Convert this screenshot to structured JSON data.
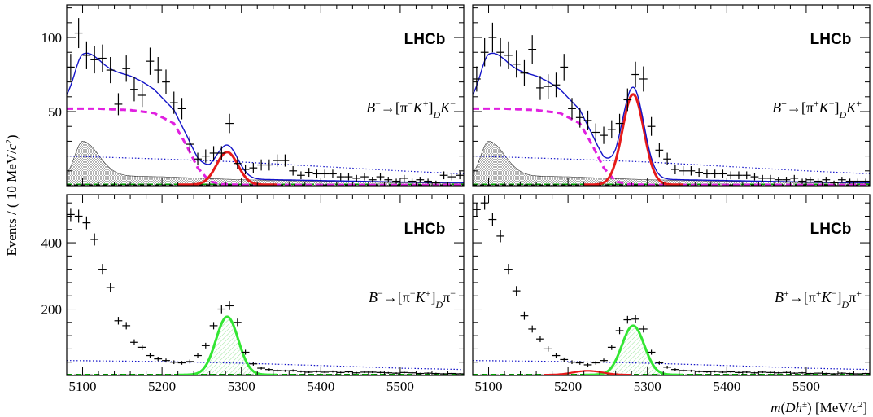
{
  "chart_data": {
    "type": "scatter",
    "shared": {
      "ylabel": "Events / ( 10 MeV/c²)",
      "xlabel": "m(Dh±) [MeV/c²]",
      "xlim": [
        5080,
        5580
      ],
      "xticks": [
        5100,
        5200,
        5300,
        5400,
        5500
      ]
    },
    "panels": [
      {
        "id": "top-left",
        "label": "LHCb",
        "decay": [
          "B",
          "−",
          "→[π",
          "−",
          "K",
          "+",
          "]",
          "D",
          "K",
          "−"
        ],
        "ylim": [
          0,
          122
        ],
        "yticks": [
          50,
          100
        ],
        "points": {
          "x": [
            5085,
            5095,
            5105,
            5115,
            5125,
            5135,
            5145,
            5155,
            5165,
            5175,
            5185,
            5195,
            5205,
            5215,
            5225,
            5235,
            5245,
            5255,
            5265,
            5275,
            5285,
            5295,
            5305,
            5315,
            5325,
            5335,
            5345,
            5355,
            5365,
            5375,
            5385,
            5395,
            5405,
            5415,
            5425,
            5435,
            5445,
            5455,
            5465,
            5475,
            5485,
            5495,
            5505,
            5515,
            5525,
            5535,
            5545,
            5555,
            5565,
            5575
          ],
          "y": [
            80,
            103,
            88,
            85,
            86,
            78,
            55,
            79,
            65,
            61,
            84,
            78,
            70,
            56,
            52,
            28,
            18,
            20,
            22,
            22,
            42,
            15,
            11,
            12,
            14,
            14,
            17,
            17,
            10,
            7,
            9,
            8,
            8,
            8,
            6,
            6,
            5,
            6,
            4,
            6,
            4,
            3,
            5,
            3,
            4,
            3,
            2,
            7,
            6,
            7
          ]
        },
        "curves": {
          "combinatorial": [
            [
              5080,
              5
            ],
            [
              5100,
              7
            ],
            [
              5200,
              6
            ],
            [
              5300,
              4
            ],
            [
              5400,
              3
            ],
            [
              5500,
              2
            ],
            [
              5580,
              1.6
            ]
          ],
          "partially_reconstructed_bs": [
            [
              5080,
              52
            ],
            [
              5120,
              52
            ],
            [
              5160,
              51
            ],
            [
              5190,
              49
            ],
            [
              5215,
              42
            ],
            [
              5230,
              28
            ],
            [
              5245,
              12
            ],
            [
              5260,
              3
            ],
            [
              5275,
              1
            ],
            [
              5300,
              0.5
            ]
          ],
          "signal_peak": {
            "mean": 5282,
            "sigma": 13.5,
            "amp": 22
          },
          "low_mass_hump": {
            "mean": 5100,
            "sigma": 12,
            "amp": 23
          },
          "dotted_line": [
            [
              5080,
              20
            ],
            [
              5200,
              18
            ],
            [
              5300,
              16
            ],
            [
              5400,
              13
            ],
            [
              5500,
              10
            ],
            [
              5580,
              8
            ]
          ],
          "floor": 1.6
        }
      },
      {
        "id": "top-right",
        "label": "LHCb",
        "decay": [
          "B",
          "+",
          "→[π",
          "+",
          "K",
          "−",
          "]",
          "D",
          "K",
          "+"
        ],
        "ylim": [
          0,
          122
        ],
        "yticks": [
          50,
          100
        ],
        "points": {
          "x": [
            5085,
            5095,
            5105,
            5115,
            5125,
            5135,
            5145,
            5155,
            5165,
            5175,
            5185,
            5195,
            5205,
            5215,
            5225,
            5235,
            5245,
            5255,
            5265,
            5275,
            5285,
            5295,
            5305,
            5315,
            5325,
            5335,
            5345,
            5355,
            5365,
            5375,
            5385,
            5395,
            5405,
            5415,
            5425,
            5435,
            5445,
            5455,
            5465,
            5475,
            5485,
            5495,
            5505,
            5515,
            5525,
            5535,
            5545,
            5555,
            5565,
            5575
          ],
          "y": [
            72,
            90,
            100,
            90,
            88,
            82,
            76,
            92,
            66,
            67,
            68,
            80,
            52,
            46,
            44,
            36,
            34,
            38,
            42,
            58,
            75,
            72,
            40,
            24,
            18,
            11,
            10,
            10,
            9,
            8,
            8,
            8,
            7,
            7,
            7,
            6,
            5,
            5,
            4,
            4,
            5,
            3,
            4,
            3,
            4,
            2,
            4,
            3,
            3,
            3
          ]
        },
        "curves": {
          "combinatorial": [
            [
              5080,
              5
            ],
            [
              5100,
              7
            ],
            [
              5200,
              6
            ],
            [
              5300,
              4
            ],
            [
              5400,
              3
            ],
            [
              5500,
              2
            ],
            [
              5580,
              1.6
            ]
          ],
          "partially_reconstructed_bs": [
            [
              5080,
              52
            ],
            [
              5120,
              52
            ],
            [
              5160,
              51
            ],
            [
              5190,
              49
            ],
            [
              5215,
              42
            ],
            [
              5230,
              28
            ],
            [
              5245,
              12
            ],
            [
              5260,
              3
            ],
            [
              5275,
              1
            ],
            [
              5300,
              0.5
            ]
          ],
          "signal_peak": {
            "mean": 5282,
            "sigma": 13.5,
            "amp": 61
          },
          "low_mass_hump": {
            "mean": 5100,
            "sigma": 12,
            "amp": 23
          },
          "dotted_line": [
            [
              5080,
              20
            ],
            [
              5200,
              18
            ],
            [
              5300,
              16
            ],
            [
              5400,
              13
            ],
            [
              5500,
              10
            ],
            [
              5580,
              8
            ]
          ],
          "floor": 1.6
        }
      },
      {
        "id": "bottom-left",
        "label": "LHCb",
        "decay": [
          "B",
          "−",
          "→[π",
          "−",
          "K",
          "+",
          "]",
          "D",
          "π",
          "−"
        ],
        "ylim": [
          0,
          545
        ],
        "yticks": [
          200,
          400
        ],
        "points": {
          "x": [
            5085,
            5095,
            5105,
            5115,
            5125,
            5135,
            5145,
            5155,
            5165,
            5175,
            5185,
            5195,
            5205,
            5215,
            5225,
            5235,
            5245,
            5255,
            5265,
            5275,
            5285,
            5295,
            5305,
            5315,
            5325,
            5335,
            5345,
            5355,
            5365,
            5375,
            5385,
            5395,
            5405,
            5415,
            5425,
            5435,
            5445,
            5455,
            5465,
            5475,
            5485,
            5495,
            5505,
            5515,
            5525,
            5535,
            5545,
            5555,
            5565,
            5575
          ],
          "y": [
            485,
            480,
            460,
            410,
            320,
            265,
            165,
            150,
            100,
            85,
            60,
            50,
            45,
            40,
            38,
            42,
            60,
            90,
            150,
            200,
            210,
            160,
            70,
            35,
            22,
            18,
            15,
            14,
            15,
            12,
            10,
            12,
            10,
            12,
            9,
            11,
            8,
            10,
            10,
            9,
            8,
            7,
            9,
            8,
            6,
            7,
            6,
            5,
            6,
            5
          ]
        },
        "curves": {
          "combinatorial": [
            [
              5080,
              5
            ],
            [
              5200,
              5
            ],
            [
              5300,
              4
            ],
            [
              5400,
              4
            ],
            [
              5500,
              3
            ],
            [
              5580,
              3
            ]
          ],
          "partially_reconstructed_bs": [
            [
              5080,
              0
            ],
            [
              5580,
              0
            ]
          ],
          "signal_peak": {
            "mean": 5282,
            "sigma": 14,
            "amp": 175
          },
          "low_mass_hump": {
            "mean": 5100,
            "sigma": 28,
            "amp": 440
          },
          "dotted_line": [
            [
              5080,
              45
            ],
            [
              5200,
              42
            ],
            [
              5300,
              37
            ],
            [
              5400,
              30
            ],
            [
              5500,
              22
            ],
            [
              5580,
              18
            ]
          ],
          "floor": 5
        }
      },
      {
        "id": "bottom-right",
        "label": "LHCb",
        "decay": [
          "B",
          "+",
          "→[π",
          "+",
          "K",
          "−",
          "]",
          "D",
          "π",
          "+"
        ],
        "ylim": [
          0,
          545
        ],
        "yticks": [
          200,
          400
        ],
        "points": {
          "x": [
            5085,
            5095,
            5105,
            5115,
            5125,
            5135,
            5145,
            5155,
            5165,
            5175,
            5185,
            5195,
            5205,
            5215,
            5225,
            5235,
            5245,
            5255,
            5265,
            5275,
            5285,
            5295,
            5305,
            5315,
            5325,
            5335,
            5345,
            5355,
            5365,
            5375,
            5385,
            5395,
            5405,
            5415,
            5425,
            5435,
            5445,
            5455,
            5465,
            5475,
            5485,
            5495,
            5505,
            5515,
            5525,
            5535,
            5545,
            5555,
            5565,
            5575
          ],
          "y": [
            500,
            520,
            470,
            420,
            320,
            255,
            180,
            140,
            110,
            80,
            60,
            48,
            40,
            38,
            32,
            38,
            45,
            85,
            135,
            168,
            170,
            140,
            70,
            38,
            25,
            18,
            15,
            14,
            12,
            11,
            12,
            10,
            11,
            9,
            10,
            8,
            10,
            9,
            8,
            9,
            7,
            8,
            6,
            7,
            6,
            5,
            7,
            6,
            5,
            6
          ]
        },
        "curves": {
          "combinatorial": [
            [
              5080,
              5
            ],
            [
              5200,
              5
            ],
            [
              5300,
              4
            ],
            [
              5400,
              4
            ],
            [
              5500,
              3
            ],
            [
              5580,
              3
            ]
          ],
          "partially_reconstructed_bs": [
            [
              5080,
              0
            ],
            [
              5580,
              0
            ]
          ],
          "signal_peak": {
            "mean": 5282,
            "sigma": 14,
            "amp": 148
          },
          "low_mass_hump": {
            "mean": 5100,
            "sigma": 28,
            "amp": 440
          },
          "dotted_line": [
            [
              5080,
              45
            ],
            [
              5200,
              42
            ],
            [
              5300,
              37
            ],
            [
              5400,
              30
            ],
            [
              5500,
              22
            ],
            [
              5580,
              18
            ]
          ],
          "red_hump": {
            "mean": 5225,
            "sigma": 18,
            "amp": 12
          },
          "floor": 5
        }
      }
    ],
    "colors": {
      "total_fit": "#1414c8",
      "signal_kaon": "#e61a1a",
      "signal_pion": "#33e633",
      "partially_reconstructed": "#e020e0",
      "combinatorial": "#1414c8",
      "hatched": "#555555",
      "green_dashed": "#00aa00",
      "points": "#000000"
    }
  }
}
